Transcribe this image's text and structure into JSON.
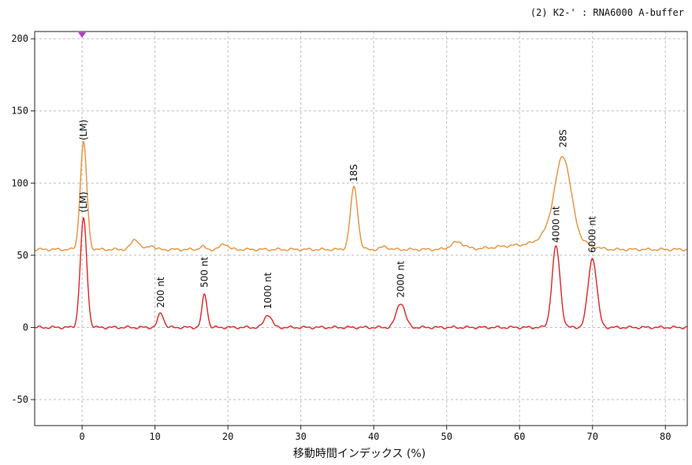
{
  "chart_data": {
    "type": "line",
    "subtitle": "(2) K2-' : RNA6000  A-buffer",
    "xlabel": "移動時間インデックス (%)",
    "ylabel": "",
    "xlim": [
      -6.5,
      83
    ],
    "ylim": [
      -68,
      205
    ],
    "x_ticks": [
      0,
      10,
      20,
      30,
      40,
      50,
      60,
      70,
      80
    ],
    "x_tick_labels": [
      "0",
      "10",
      "20",
      "30",
      "40",
      "50",
      "60",
      "70",
      "80"
    ],
    "y_ticks": [
      -50,
      0,
      50,
      100,
      150,
      200
    ],
    "y_tick_labels": [
      "-50",
      "0",
      "50",
      "100",
      "150",
      "200"
    ],
    "grid": true,
    "marker_x": 0,
    "series": [
      {
        "color": "#e8903a",
        "baseline": 54,
        "peaks": [
          {
            "x": 0.2,
            "height": 74,
            "width": 0.45
          },
          {
            "x": 7.3,
            "height": 7,
            "width": 0.55
          },
          {
            "x": 9.5,
            "height": 3,
            "width": 0.4
          },
          {
            "x": 16.5,
            "height": 2,
            "width": 0.4
          },
          {
            "x": 19.5,
            "height": 4,
            "width": 0.5
          },
          {
            "x": 37.3,
            "height": 43,
            "width": 0.5
          },
          {
            "x": 41.5,
            "height": 2,
            "width": 0.5
          },
          {
            "x": 51.5,
            "height": 5,
            "width": 0.9
          },
          {
            "x": 60.5,
            "height": 3,
            "width": 3.5
          },
          {
            "x": 64.5,
            "height": 10,
            "width": 1.6
          },
          {
            "x": 66.0,
            "height": 56,
            "width": 1.1
          },
          {
            "x": 68.5,
            "height": 4,
            "width": 1.5
          }
        ]
      },
      {
        "color": "#e02424",
        "baseline": 0,
        "peaks": [
          {
            "x": 0.2,
            "height": 75,
            "width": 0.45
          },
          {
            "x": 10.8,
            "height": 10,
            "width": 0.4
          },
          {
            "x": 16.8,
            "height": 23,
            "width": 0.35
          },
          {
            "x": 25.5,
            "height": 9,
            "width": 0.5
          },
          {
            "x": 43.7,
            "height": 17,
            "width": 0.6
          },
          {
            "x": 65.0,
            "height": 56,
            "width": 0.55
          },
          {
            "x": 70.0,
            "height": 48,
            "width": 0.6
          }
        ]
      }
    ],
    "annotations": [
      {
        "text": "(LM)",
        "x": 0.2,
        "y": 128
      },
      {
        "text": "(LM)",
        "x": 0.2,
        "y": 78
      },
      {
        "text": "18S",
        "x": 37.3,
        "y": 99
      },
      {
        "text": "28S",
        "x": 66.0,
        "y": 123
      },
      {
        "text": "200 nt",
        "x": 10.8,
        "y": 12
      },
      {
        "text": "500 nt",
        "x": 16.8,
        "y": 26
      },
      {
        "text": "1000 nt",
        "x": 25.5,
        "y": 11
      },
      {
        "text": "2000 nt",
        "x": 43.7,
        "y": 19
      },
      {
        "text": "4000 nt",
        "x": 65.0,
        "y": 57
      },
      {
        "text": "6000 nt",
        "x": 70.0,
        "y": 50
      }
    ]
  }
}
